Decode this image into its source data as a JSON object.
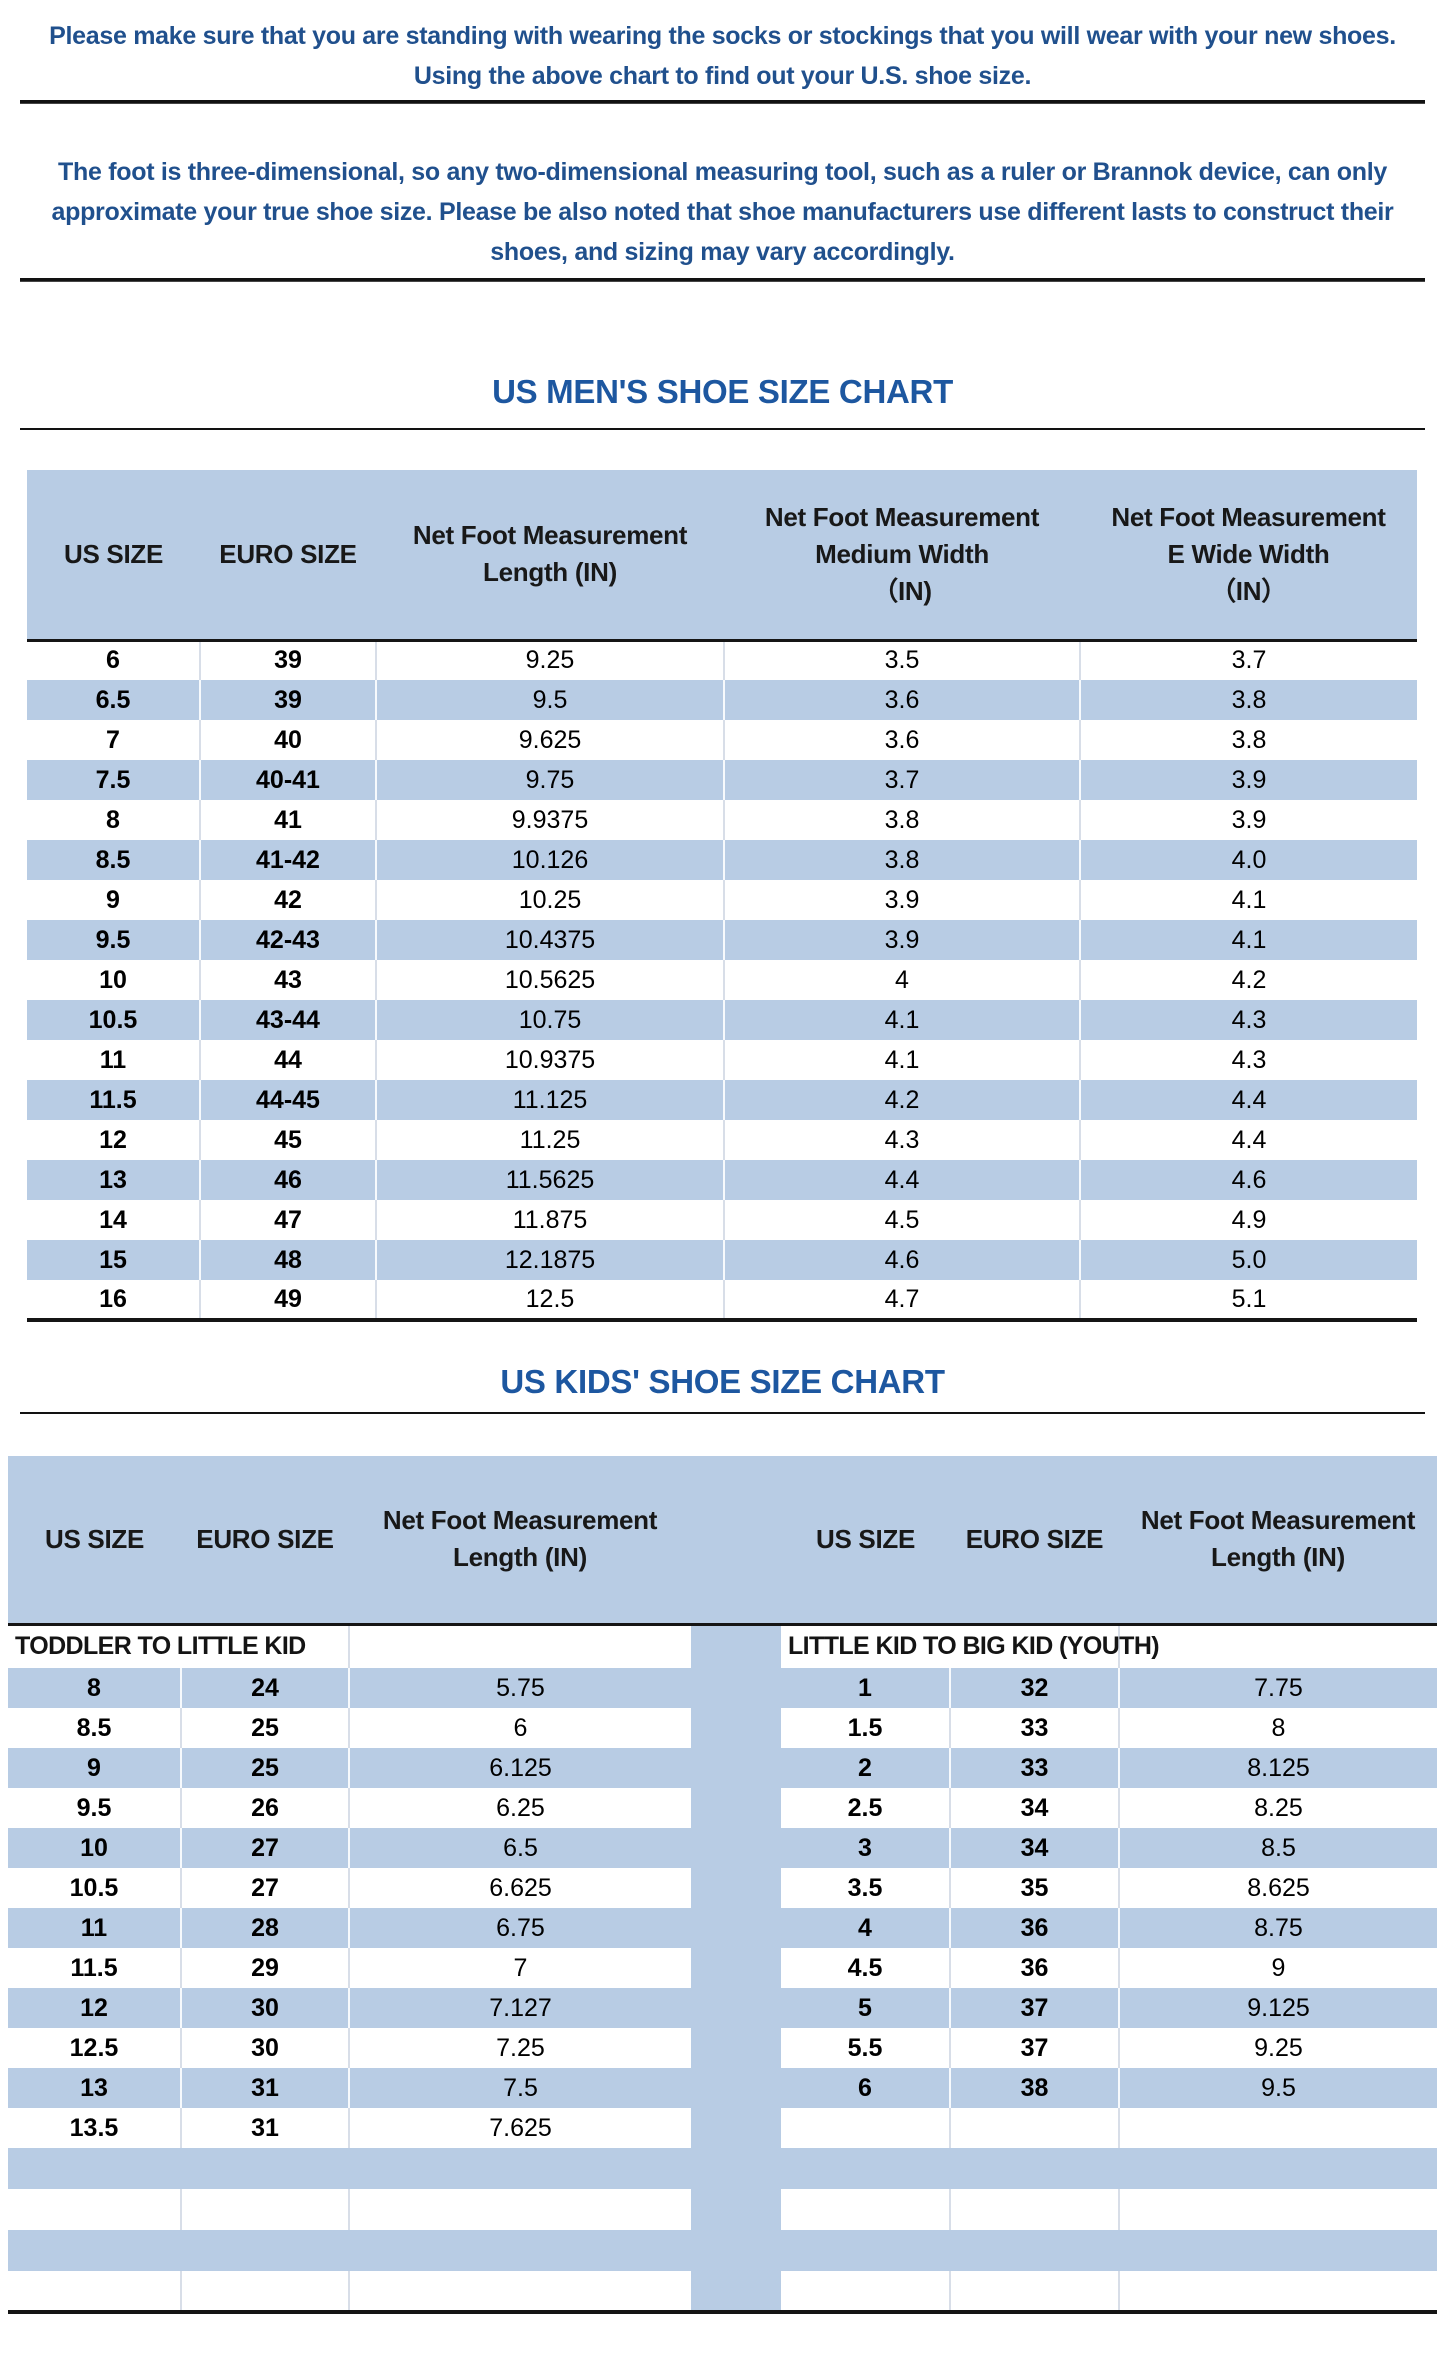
{
  "colors": {
    "stripe_blue": "#b8cce4",
    "paragraph_blue": "#20508d",
    "title_blue": "#1d57a0",
    "line_black": "#151515"
  },
  "intro": {
    "p1_lines": [
      "Please make sure that you are standing with wearing the socks or stockings that you will wear with your new shoes.",
      "Using the above chart to find out your U.S. shoe size."
    ],
    "p2_lines": [
      "The foot is three-dimensional, so any two-dimensional measuring tool, such as a ruler or Brannok device, can only",
      "approximate your true shoe size. Please be also noted that shoe manufacturers use different lasts to construct their",
      "shoes, and sizing may vary accordingly."
    ]
  },
  "mens_chart": {
    "title": "US MEN'S SHOE SIZE CHART",
    "columns": [
      "US SIZE",
      "EURO SIZE",
      "Net Foot Measurement\nLength (IN)",
      "Net Foot Measurement\nMedium Width\n（IN)",
      "Net Foot Measurement\nE Wide Width\n（IN）"
    ],
    "rows": [
      [
        "6",
        "39",
        "9.25",
        "3.5",
        "3.7"
      ],
      [
        "6.5",
        "39",
        "9.5",
        "3.6",
        "3.8"
      ],
      [
        "7",
        "40",
        "9.625",
        "3.6",
        "3.8"
      ],
      [
        "7.5",
        "40-41",
        "9.75",
        "3.7",
        "3.9"
      ],
      [
        "8",
        "41",
        "9.9375",
        "3.8",
        "3.9"
      ],
      [
        "8.5",
        "41-42",
        "10.126",
        "3.8",
        "4.0"
      ],
      [
        "9",
        "42",
        "10.25",
        "3.9",
        "4.1"
      ],
      [
        "9.5",
        "42-43",
        "10.4375",
        "3.9",
        "4.1"
      ],
      [
        "10",
        "43",
        "10.5625",
        "4",
        "4.2"
      ],
      [
        "10.5",
        "43-44",
        "10.75",
        "4.1",
        "4.3"
      ],
      [
        "11",
        "44",
        "10.9375",
        "4.1",
        "4.3"
      ],
      [
        "11.5",
        "44-45",
        "11.125",
        "4.2",
        "4.4"
      ],
      [
        "12",
        "45",
        "11.25",
        "4.3",
        "4.4"
      ],
      [
        "13",
        "46",
        "11.5625",
        "4.4",
        "4.6"
      ],
      [
        "14",
        "47",
        "11.875",
        "4.5",
        "4.9"
      ],
      [
        "15",
        "48",
        "12.1875",
        "4.6",
        "5.0"
      ],
      [
        "16",
        "49",
        "12.5",
        "4.7",
        "5.1"
      ]
    ]
  },
  "kids_chart": {
    "title": "US KIDS' SHOE SIZE CHART",
    "empty_rows": 4,
    "left": {
      "section": "TODDLER TO LITTLE KID",
      "columns": [
        "US SIZE",
        "EURO SIZE",
        "Net Foot Measurement\nLength (IN)"
      ],
      "rows": [
        [
          "8",
          "24",
          "5.75"
        ],
        [
          "8.5",
          "25",
          "6"
        ],
        [
          "9",
          "25",
          "6.125"
        ],
        [
          "9.5",
          "26",
          "6.25"
        ],
        [
          "10",
          "27",
          "6.5"
        ],
        [
          "10.5",
          "27",
          "6.625"
        ],
        [
          "11",
          "28",
          "6.75"
        ],
        [
          "11.5",
          "29",
          "7"
        ],
        [
          "12",
          "30",
          "7.127"
        ],
        [
          "12.5",
          "30",
          "7.25"
        ],
        [
          "13",
          "31",
          "7.5"
        ],
        [
          "13.5",
          "31",
          "7.625"
        ]
      ]
    },
    "right": {
      "section": "LITTLE KID TO BIG KID (YOUTH)",
      "columns": [
        "US SIZE",
        "EURO SIZE",
        "Net Foot Measurement\nLength (IN)"
      ],
      "rows": [
        [
          "1",
          "32",
          "7.75"
        ],
        [
          "1.5",
          "33",
          "8"
        ],
        [
          "2",
          "33",
          "8.125"
        ],
        [
          "2.5",
          "34",
          "8.25"
        ],
        [
          "3",
          "34",
          "8.5"
        ],
        [
          "3.5",
          "35",
          "8.625"
        ],
        [
          "4",
          "36",
          "8.75"
        ],
        [
          "4.5",
          "36",
          "9"
        ],
        [
          "5",
          "37",
          "9.125"
        ],
        [
          "5.5",
          "37",
          "9.25"
        ],
        [
          "6",
          "38",
          "9.5"
        ],
        [
          "",
          "",
          ""
        ]
      ]
    }
  }
}
